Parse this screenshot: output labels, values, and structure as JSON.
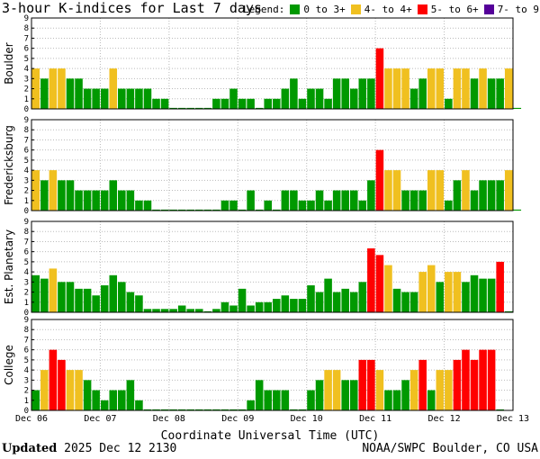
{
  "title": "3-hour K-indices for Last 7 days",
  "legend": {
    "label": "Legend:",
    "items": [
      {
        "label": "0 to 3+",
        "color": "#009900"
      },
      {
        "label": "4- to 4+",
        "color": "#f0c020"
      },
      {
        "label": "5- to 6+",
        "color": "#ff0000"
      },
      {
        "label": "7- to 9",
        "color": "#550099"
      }
    ]
  },
  "footer": {
    "updated_label": "Updated",
    "updated_value": "2025 Dec 12 2130",
    "source": "NOAA/SWPC Boulder, CO USA"
  },
  "chart_data": {
    "type": "bar",
    "xlabel": "Coordinate Universal Time (UTC)",
    "x_tick_labels": [
      "Dec 06",
      "Dec 07",
      "Dec 08",
      "Dec 09",
      "Dec 10",
      "Dec 11",
      "Dec 12",
      "Dec 13"
    ],
    "y_ticks": [
      0,
      1,
      2,
      3,
      4,
      5,
      6,
      7,
      8,
      9
    ],
    "ylim": [
      0,
      9
    ],
    "intervals_per_day": 8,
    "color_scale": [
      {
        "max": 3.67,
        "color": "#009900"
      },
      {
        "max": 4.67,
        "color": "#f0c020"
      },
      {
        "max": 6.67,
        "color": "#ff0000"
      },
      {
        "max": 9,
        "color": "#550099"
      }
    ],
    "panels": [
      {
        "name": "Boulder",
        "values": [
          4,
          3,
          4,
          4,
          3,
          3,
          2,
          2,
          2,
          4,
          2,
          2,
          2,
          2,
          1,
          1,
          0.1,
          0.1,
          0.1,
          0.1,
          0.1,
          1,
          1,
          2,
          1,
          1,
          0.1,
          1,
          1,
          2,
          3,
          1,
          2,
          2,
          1,
          3,
          3,
          2,
          3,
          3,
          6,
          4,
          4,
          4,
          2,
          3,
          4,
          4,
          1,
          4,
          4,
          3,
          4,
          3,
          3,
          4,
          0.1
        ]
      },
      {
        "name": "Fredericksburg",
        "values": [
          4,
          3,
          4,
          3,
          3,
          2,
          2,
          2,
          2,
          3,
          2,
          2,
          1,
          1,
          0.1,
          0.1,
          0.1,
          0.1,
          0.1,
          0.1,
          0.1,
          0.1,
          1,
          1,
          0.1,
          2,
          0.1,
          1,
          0.1,
          2,
          2,
          1,
          1,
          2,
          1,
          2,
          2,
          2,
          1,
          3,
          6,
          4,
          4,
          2,
          2,
          2,
          4,
          4,
          1,
          3,
          4,
          2,
          3,
          3,
          3,
          4,
          0.1
        ]
      },
      {
        "name": "Est. Planetary",
        "values": [
          3.67,
          3.33,
          4.33,
          3,
          3,
          2.33,
          2.33,
          1.67,
          2.67,
          3.67,
          3,
          2,
          1.67,
          0.33,
          0.33,
          0.33,
          0.33,
          0.67,
          0.33,
          0.33,
          0.1,
          0.33,
          1,
          0.67,
          2.33,
          0.67,
          1,
          1,
          1.33,
          1.67,
          1.33,
          1.33,
          2.67,
          2,
          3.33,
          2,
          2.33,
          2,
          3,
          6.33,
          5.67,
          4.67,
          2.33,
          2,
          2,
          4,
          4.67,
          3,
          4,
          4,
          3,
          3.67,
          3.33,
          3.33,
          5,
          0.1
        ]
      },
      {
        "name": "College",
        "values": [
          2,
          4,
          6,
          5,
          4,
          4,
          3,
          2,
          1,
          2,
          2,
          3,
          1,
          0.1,
          0.1,
          0.1,
          0.1,
          0.1,
          0.1,
          0.1,
          0.1,
          0.1,
          0.1,
          0.1,
          0.1,
          1,
          3,
          2,
          2,
          2,
          0.1,
          0.1,
          2,
          3,
          4,
          4,
          3,
          3,
          5,
          5,
          4,
          2,
          2,
          3,
          4,
          5,
          2,
          4,
          4,
          5,
          6,
          5,
          6,
          6,
          0.1
        ]
      }
    ]
  }
}
